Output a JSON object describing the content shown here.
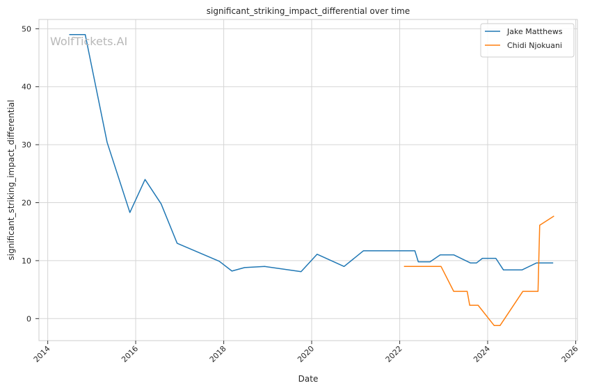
{
  "chart_data": {
    "type": "line",
    "title": "significant_striking_impact_differential over time",
    "xlabel": "Date",
    "ylabel": "significant_striking_impact_differential",
    "watermark": "WolfTickets.AI",
    "xlim": [
      "2013-10-20",
      "2026-01-15"
    ],
    "ylim": [
      -3.8,
      51.6
    ],
    "x_ticks": [
      "2014",
      "2016",
      "2018",
      "2020",
      "2022",
      "2024",
      "2026"
    ],
    "y_ticks": [
      0,
      10,
      20,
      30,
      40,
      50
    ],
    "grid": true,
    "legend_position": "top-right",
    "series": [
      {
        "name": "Jake Matthews",
        "color": "#1f77b4",
        "points": [
          [
            "2014-06-28",
            49.0
          ],
          [
            "2014-11-08",
            49.0
          ],
          [
            "2015-05-09",
            30.4
          ],
          [
            "2015-11-14",
            18.3
          ],
          [
            "2016-03-19",
            24.0
          ],
          [
            "2016-07-30",
            19.8
          ],
          [
            "2016-12-10",
            13.0
          ],
          [
            "2017-11-25",
            9.9
          ],
          [
            "2018-03-10",
            8.2
          ],
          [
            "2018-06-23",
            8.8
          ],
          [
            "2018-12-08",
            9.0
          ],
          [
            "2019-10-05",
            8.1
          ],
          [
            "2020-02-15",
            11.1
          ],
          [
            "2020-09-26",
            9.0
          ],
          [
            "2021-03-06",
            11.7
          ],
          [
            "2022-05-07",
            11.7
          ],
          [
            "2022-06-04",
            9.8
          ],
          [
            "2022-09-10",
            9.8
          ],
          [
            "2022-12-03",
            11.0
          ],
          [
            "2023-03-25",
            11.0
          ],
          [
            "2023-08-12",
            9.6
          ],
          [
            "2023-09-30",
            9.6
          ],
          [
            "2023-11-18",
            10.4
          ],
          [
            "2024-03-09",
            10.4
          ],
          [
            "2024-05-11",
            8.4
          ],
          [
            "2024-10-12",
            8.4
          ],
          [
            "2025-02-08",
            9.6
          ],
          [
            "2025-06-28",
            9.6
          ]
        ]
      },
      {
        "name": "Chidi Njokuani",
        "color": "#ff7f0e",
        "points": [
          [
            "2022-02-05",
            9.0
          ],
          [
            "2022-12-10",
            9.0
          ],
          [
            "2023-03-25",
            4.7
          ],
          [
            "2023-07-15",
            4.7
          ],
          [
            "2023-08-05",
            2.3
          ],
          [
            "2023-10-14",
            2.3
          ],
          [
            "2024-02-24",
            -1.2
          ],
          [
            "2024-04-13",
            -1.2
          ],
          [
            "2024-10-19",
            4.7
          ],
          [
            "2025-02-22",
            4.7
          ],
          [
            "2025-03-08",
            16.1
          ],
          [
            "2025-07-05",
            17.7
          ]
        ]
      }
    ]
  }
}
